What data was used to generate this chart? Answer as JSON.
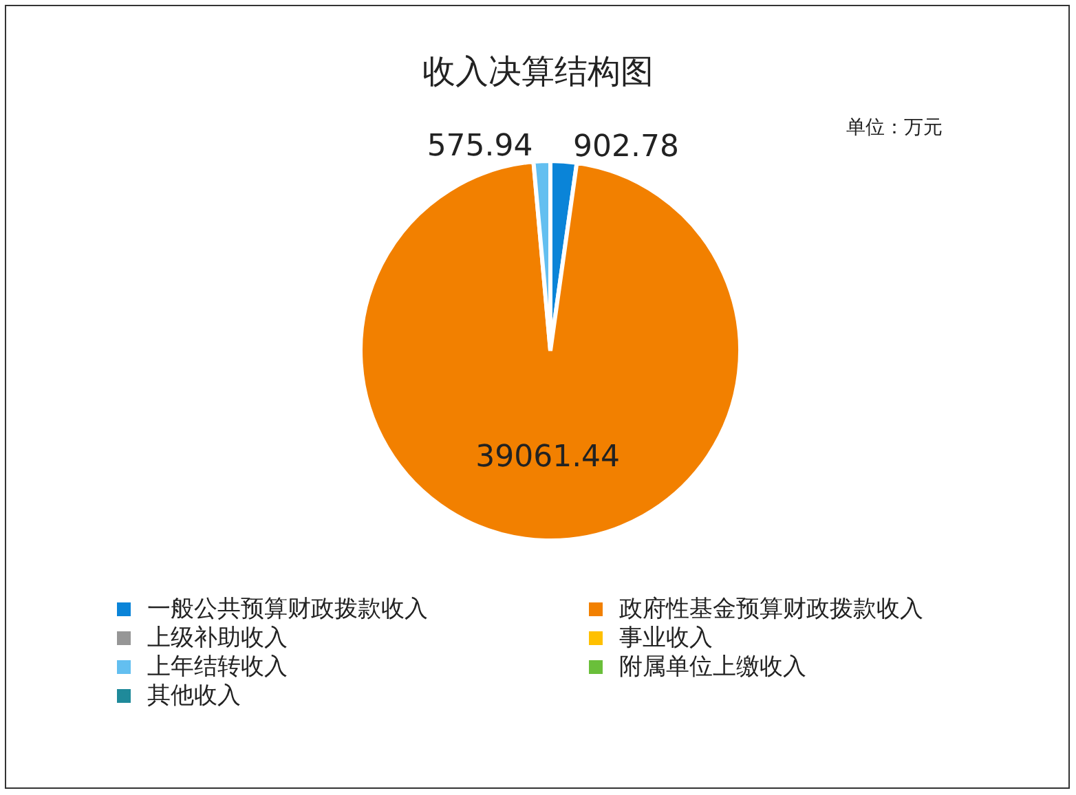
{
  "chart_data": {
    "type": "pie",
    "title": "收入决算结构图",
    "annotations": [
      "单位：万元"
    ],
    "categories": [
      "一般公共预算财政拨款收入",
      "政府性基金预算财政拨款收入",
      "上级补助收入",
      "事业收入",
      "上年结转收入",
      "附属单位上缴收入",
      "其他收入"
    ],
    "values": [
      902.78,
      39061.44,
      0,
      0,
      575.94,
      0,
      0
    ],
    "colors": [
      "#0a84d8",
      "#f28000",
      "#969696",
      "#ffc000",
      "#63bff0",
      "#6abf3a",
      "#1f8a9a"
    ],
    "data_labels": true,
    "legend": "bottom"
  }
}
